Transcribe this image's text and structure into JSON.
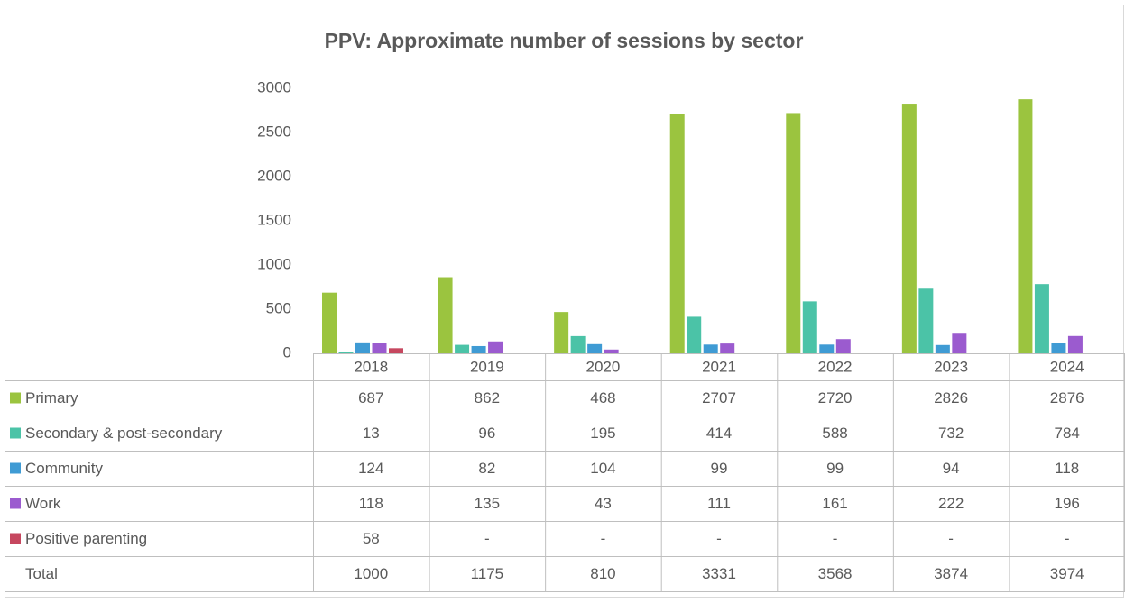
{
  "chart_data": {
    "type": "bar",
    "title": "PPV: Approximate number of sessions by sector",
    "categories": [
      "2018",
      "2019",
      "2020",
      "2021",
      "2022",
      "2023",
      "2024"
    ],
    "series": [
      {
        "name": "Primary",
        "color": "#9bc43f",
        "values": [
          687,
          862,
          468,
          2707,
          2720,
          2826,
          2876
        ]
      },
      {
        "name": "Secondary & post-secondary",
        "color": "#4bc3a7",
        "values": [
          13,
          96,
          195,
          414,
          588,
          732,
          784
        ]
      },
      {
        "name": "Community",
        "color": "#3f9bd4",
        "values": [
          124,
          82,
          104,
          99,
          99,
          94,
          118
        ]
      },
      {
        "name": "Work",
        "color": "#9b5bcf",
        "values": [
          118,
          135,
          43,
          111,
          161,
          222,
          196
        ]
      },
      {
        "name": "Positive parenting",
        "color": "#c6475f",
        "values": [
          58,
          null,
          null,
          null,
          null,
          null,
          null
        ],
        "value_labels": [
          "58",
          "-",
          "-",
          "-",
          "-",
          "-",
          "-"
        ]
      }
    ],
    "totals": {
      "name": "Total",
      "values": [
        1000,
        1175,
        810,
        3331,
        3568,
        3874,
        3974
      ]
    },
    "ylim": [
      0,
      3000
    ],
    "yticks": [
      0,
      500,
      1000,
      1500,
      2000,
      2500,
      3000
    ],
    "legend": "table"
  }
}
